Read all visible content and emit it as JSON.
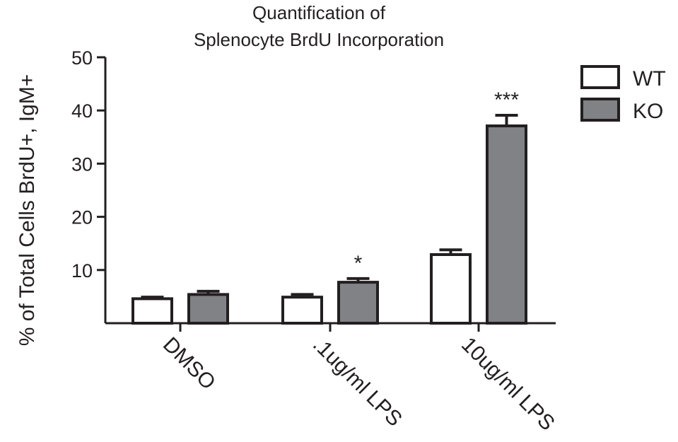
{
  "chart_data": {
    "type": "bar",
    "title_lines": [
      "Quantification of",
      "Splenocyte BrdU Incorporation"
    ],
    "xlabel": "",
    "ylabel": "% of Total Cells BrdU+, IgM+",
    "ylim": [
      0,
      50
    ],
    "y_ticks": [
      10,
      20,
      30,
      40,
      50
    ],
    "grid": false,
    "legend_position": "top-right",
    "categories": [
      "DMSO",
      ".1ug/ml LPS",
      "10ug/ml LPS"
    ],
    "series": [
      {
        "name": "WT",
        "color": "#ffffff",
        "values": [
          4.6,
          4.9,
          12.9
        ],
        "errors": [
          0.3,
          0.5,
          0.9
        ]
      },
      {
        "name": "KO",
        "color": "#808285",
        "values": [
          5.4,
          7.7,
          37.1
        ],
        "errors": [
          0.6,
          0.7,
          2.0
        ]
      }
    ],
    "annotations": [
      {
        "category_index": 1,
        "series_index": 1,
        "text": "*"
      },
      {
        "category_index": 2,
        "series_index": 1,
        "text": "***"
      }
    ]
  }
}
